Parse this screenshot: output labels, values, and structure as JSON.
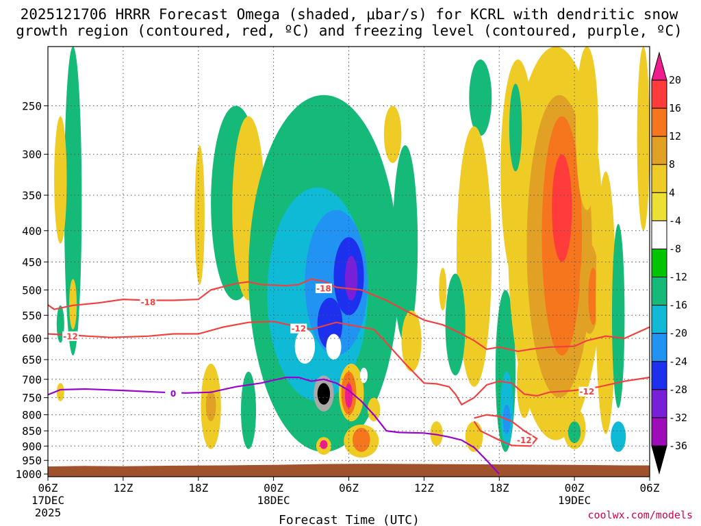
{
  "title": {
    "line1": "2025121706 HRRR Forecast Omega (shaded, μbar/s) for KCRL with dendritic snow",
    "line2": "growth region (contoured, red, ºC) and freezing level (contoured, purple, ºC)"
  },
  "credit": "coolwx.com/models",
  "colors": {
    "ascent_strong": "#ee1c8c",
    "ground": "#a0522d",
    "dgz_contour": "#f04040",
    "freezing_contour": "#9900cc",
    "grid": "#555555"
  },
  "chart_data": {
    "type": "heatmap",
    "title": "2025121706 HRRR Forecast Omega (shaded, μbar/s) for KCRL with dendritic snow growth region (contoured, red, ºC) and freezing level (contoured, purple, ºC)",
    "xlabel": "Forecast Time (UTC)",
    "ylabel": "",
    "x_range_hours": [
      0,
      48
    ],
    "y_range_hPa": [
      200,
      1010
    ],
    "y_scale": "log-pressure",
    "x_ticks": [
      {
        "hour": 0,
        "label": "06Z",
        "sub1": "17DEC",
        "sub2": "2025"
      },
      {
        "hour": 6,
        "label": "12Z",
        "sub1": "",
        "sub2": ""
      },
      {
        "hour": 12,
        "label": "18Z",
        "sub1": "",
        "sub2": ""
      },
      {
        "hour": 18,
        "label": "00Z",
        "sub1": "18DEC",
        "sub2": ""
      },
      {
        "hour": 24,
        "label": "06Z",
        "sub1": "",
        "sub2": ""
      },
      {
        "hour": 30,
        "label": "12Z",
        "sub1": "",
        "sub2": ""
      },
      {
        "hour": 36,
        "label": "18Z",
        "sub1": "",
        "sub2": ""
      },
      {
        "hour": 42,
        "label": "00Z",
        "sub1": "19DEC",
        "sub2": ""
      },
      {
        "hour": 48,
        "label": "06Z",
        "sub1": "",
        "sub2": ""
      }
    ],
    "y_ticks": [
      250,
      300,
      350,
      400,
      450,
      500,
      550,
      600,
      650,
      700,
      750,
      800,
      850,
      900,
      950,
      1000
    ],
    "grid": true,
    "colorbar": {
      "labels": [
        "20",
        "16",
        "12",
        "8",
        "4",
        "-4",
        "-8",
        "-12",
        "-16",
        "-20",
        "-24",
        "-28",
        "-32",
        "-36"
      ],
      "bins": [
        {
          "color": "#ff3b3b"
        },
        {
          "color": "#f5761c"
        },
        {
          "color": "#e1a125"
        },
        {
          "color": "#efcb26"
        },
        {
          "color": "#ece034"
        },
        {
          "color": "#ffffff"
        },
        {
          "color": "#00c400"
        },
        {
          "color": "#15ba78"
        },
        {
          "color": "#0fbad6"
        },
        {
          "color": "#2194f3"
        },
        {
          "color": "#1d30ee"
        },
        {
          "color": "#7a1fd8"
        },
        {
          "color": "#9d0cb8"
        },
        {
          "color": "#a9a9a9"
        }
      ],
      "top_arrow_color": "#ee1c8c",
      "bottom_arrow_color": "#000000"
    },
    "omega_regions": [
      {
        "value": -10,
        "hour": 2.0,
        "p": 410,
        "dh": 0.7,
        "dp_up": 220,
        "dp_dn": 230
      },
      {
        "value": -8,
        "hour": 1.0,
        "p": 570,
        "dh": 0.3,
        "dp_up": 40,
        "dp_dn": 40
      },
      {
        "value": 6,
        "hour": 1.0,
        "p": 350,
        "dh": 0.5,
        "dp_up": 90,
        "dp_dn": 70
      },
      {
        "value": 6,
        "hour": 2.0,
        "p": 540,
        "dh": 0.3,
        "dp_up": 60,
        "dp_dn": 40
      },
      {
        "value": 6,
        "hour": 1.0,
        "p": 740,
        "dh": 0.3,
        "dp_up": 30,
        "dp_dn": 20
      },
      {
        "value": 6,
        "hour": 12.1,
        "p": 400,
        "dh": 0.4,
        "dp_up": 110,
        "dp_dn": 90
      },
      {
        "value": 6,
        "hour": 13.0,
        "p": 780,
        "dh": 0.8,
        "dp_up": 120,
        "dp_dn": 130
      },
      {
        "value": 10,
        "hour": 13.0,
        "p": 780,
        "dh": 0.4,
        "dp_up": 50,
        "dp_dn": 40
      },
      {
        "value": -10,
        "hour": 15.0,
        "p": 400,
        "dh": 2.0,
        "dp_up": 150,
        "dp_dn": 120
      },
      {
        "value": 6,
        "hour": 16.0,
        "p": 380,
        "dh": 1.3,
        "dp_up": 120,
        "dp_dn": 140
      },
      {
        "value": 6,
        "hour": 18.4,
        "p": 620,
        "dh": 1.0,
        "dp_up": 80,
        "dp_dn": 40
      },
      {
        "value": -10,
        "hour": 16.0,
        "p": 820,
        "dh": 0.6,
        "dp_up": 140,
        "dp_dn": 90
      },
      {
        "value": -10,
        "hour": 22.0,
        "p": 620,
        "dh": 6.0,
        "dp_up": 380,
        "dp_dn": 300
      },
      {
        "value": -14,
        "hour": 21.5,
        "p": 560,
        "dh": 4.0,
        "dp_up": 220,
        "dp_dn": 200
      },
      {
        "value": -18,
        "hour": 23.0,
        "p": 520,
        "dh": 2.5,
        "dp_up": 150,
        "dp_dn": 120
      },
      {
        "value": -22,
        "hour": 24.0,
        "p": 490,
        "dh": 1.2,
        "dp_up": 80,
        "dp_dn": 60
      },
      {
        "value": -26,
        "hour": 24.2,
        "p": 480,
        "dh": 0.5,
        "dp_up": 40,
        "dp_dn": 40
      },
      {
        "value": -22,
        "hour": 22.5,
        "p": 575,
        "dh": 1.0,
        "dp_up": 60,
        "dp_dn": 50
      },
      {
        "value": 0,
        "hour": 20.5,
        "p": 620,
        "dh": 0.8,
        "dp_up": 40,
        "dp_dn": 40
      },
      {
        "value": 0,
        "hour": 22.8,
        "p": 620,
        "dh": 0.6,
        "dp_up": 30,
        "dp_dn": 30
      },
      {
        "value": 6,
        "hour": 24.2,
        "p": 760,
        "dh": 1.0,
        "dp_up": 100,
        "dp_dn": 60
      },
      {
        "value": 14,
        "hour": 24.0,
        "p": 750,
        "dh": 0.6,
        "dp_up": 70,
        "dp_dn": 50
      },
      {
        "value": 22,
        "hour": 24.0,
        "p": 750,
        "dh": 0.3,
        "dp_up": 40,
        "dp_dn": 30
      },
      {
        "value": 0,
        "hour": 25.2,
        "p": 690,
        "dh": 0.3,
        "dp_up": 20,
        "dp_dn": 20
      },
      {
        "value": 6,
        "hour": 25.0,
        "p": 880,
        "dh": 1.4,
        "dp_up": 50,
        "dp_dn": 60
      },
      {
        "value": 14,
        "hour": 25.0,
        "p": 880,
        "dh": 0.7,
        "dp_up": 40,
        "dp_dn": 40
      },
      {
        "value": 6,
        "hour": 22.0,
        "p": 900,
        "dh": 0.6,
        "dp_up": 30,
        "dp_dn": 30
      },
      {
        "value": 22,
        "hour": 22.0,
        "p": 895,
        "dh": 0.3,
        "dp_up": 15,
        "dp_dn": 15
      },
      {
        "value": -32,
        "hour": 22.0,
        "p": 740,
        "dh": 0.8,
        "dp_up": 50,
        "dp_dn": 50
      },
      {
        "value": -40,
        "hour": 22.0,
        "p": 740,
        "dh": 0.5,
        "dp_up": 30,
        "dp_dn": 30
      },
      {
        "value": 6,
        "hour": 26.0,
        "p": 780,
        "dh": 0.5,
        "dp_up": 30,
        "dp_dn": 40
      },
      {
        "value": 6,
        "hour": 27.5,
        "p": 280,
        "dh": 0.7,
        "dp_up": 30,
        "dp_dn": 30
      },
      {
        "value": -10,
        "hour": 28.5,
        "p": 490,
        "dh": 1.0,
        "dp_up": 200,
        "dp_dn": 120
      },
      {
        "value": 6,
        "hour": 29.0,
        "p": 630,
        "dh": 0.8,
        "dp_up": 90,
        "dp_dn": 50
      },
      {
        "value": 6,
        "hour": 31.0,
        "p": 850,
        "dh": 0.5,
        "dp_up": 30,
        "dp_dn": 50
      },
      {
        "value": -10,
        "hour": 34.5,
        "p": 250,
        "dh": 0.9,
        "dp_up": 40,
        "dp_dn": 30
      },
      {
        "value": 6,
        "hour": 34.0,
        "p": 520,
        "dh": 1.4,
        "dp_up": 250,
        "dp_dn": 200
      },
      {
        "value": -10,
        "hour": 32.5,
        "p": 560,
        "dh": 0.8,
        "dp_up": 90,
        "dp_dn": 130
      },
      {
        "value": 6,
        "hour": 31.5,
        "p": 500,
        "dh": 0.3,
        "dp_up": 40,
        "dp_dn": 40
      },
      {
        "value": 6,
        "hour": 34.0,
        "p": 880,
        "dh": 0.7,
        "dp_up": 60,
        "dp_dn": 40
      },
      {
        "value": -10,
        "hour": 36.5,
        "p": 760,
        "dh": 0.8,
        "dp_up": 260,
        "dp_dn": 160
      },
      {
        "value": -14,
        "hour": 36.6,
        "p": 800,
        "dh": 0.5,
        "dp_up": 120,
        "dp_dn": 100
      },
      {
        "value": -18,
        "hour": 36.6,
        "p": 820,
        "dh": 0.3,
        "dp_up": 50,
        "dp_dn": 40
      },
      {
        "value": 6,
        "hour": 37.5,
        "p": 360,
        "dh": 1.4,
        "dp_up": 150,
        "dp_dn": 130
      },
      {
        "value": 6,
        "hour": 38.0,
        "p": 720,
        "dh": 0.6,
        "dp_up": 100,
        "dp_dn": 90
      },
      {
        "value": 6,
        "hour": 40.5,
        "p": 500,
        "dh": 3.8,
        "dp_up": 300,
        "dp_dn": 380
      },
      {
        "value": 10,
        "hour": 40.8,
        "p": 450,
        "dh": 2.6,
        "dp_up": 210,
        "dp_dn": 300
      },
      {
        "value": 14,
        "hour": 41.0,
        "p": 420,
        "dh": 1.6,
        "dp_up": 160,
        "dp_dn": 220
      },
      {
        "value": 18,
        "hour": 41.0,
        "p": 380,
        "dh": 0.8,
        "dp_up": 80,
        "dp_dn": 70
      },
      {
        "value": 6,
        "hour": 42.0,
        "p": 850,
        "dh": 0.9,
        "dp_up": 70,
        "dp_dn": 60
      },
      {
        "value": -10,
        "hour": 42.0,
        "p": 860,
        "dh": 0.5,
        "dp_up": 40,
        "dp_dn": 30
      },
      {
        "value": 6,
        "hour": 43.0,
        "p": 300,
        "dh": 0.9,
        "dp_up": 100,
        "dp_dn": 70
      },
      {
        "value": 10,
        "hour": 43.2,
        "p": 500,
        "dh": 0.8,
        "dp_up": 80,
        "dp_dn": 90
      },
      {
        "value": 14,
        "hour": 43.5,
        "p": 520,
        "dh": 0.4,
        "dp_up": 60,
        "dp_dn": 50
      },
      {
        "value": 6,
        "hour": 44.5,
        "p": 600,
        "dh": 0.8,
        "dp_up": 280,
        "dp_dn": 260
      },
      {
        "value": -10,
        "hour": 45.5,
        "p": 570,
        "dh": 0.5,
        "dp_up": 180,
        "dp_dn": 210
      },
      {
        "value": -14,
        "hour": 45.5,
        "p": 860,
        "dh": 0.6,
        "dp_up": 40,
        "dp_dn": 60
      },
      {
        "value": 6,
        "hour": 47.5,
        "p": 300,
        "dh": 0.5,
        "dp_up": 100,
        "dp_dn": 100
      },
      {
        "value": -10,
        "hour": 37.3,
        "p": 280,
        "dh": 0.5,
        "dp_up": 50,
        "dp_dn": 40
      }
    ],
    "contours": {
      "minus18": {
        "label": "-18",
        "label_hour": 8.0,
        "label_p": 523,
        "label2": "-18",
        "label2_hour": 22.0,
        "label2_p": 497,
        "points": [
          [
            0,
            529
          ],
          [
            0.5,
            538
          ],
          [
            2,
            530
          ],
          [
            4,
            525
          ],
          [
            6,
            518
          ],
          [
            8,
            520
          ],
          [
            10,
            520
          ],
          [
            12,
            518
          ],
          [
            13,
            500
          ],
          [
            15,
            488
          ],
          [
            16,
            485
          ],
          [
            17,
            490
          ],
          [
            19,
            492
          ],
          [
            20,
            490
          ],
          [
            21,
            480
          ],
          [
            22,
            484
          ],
          [
            23,
            495
          ],
          [
            25,
            500
          ],
          [
            27,
            520
          ],
          [
            28.5,
            540
          ],
          [
            30,
            560
          ],
          [
            31.5,
            570
          ],
          [
            33,
            590
          ],
          [
            34,
            605
          ],
          [
            35,
            625
          ],
          [
            36,
            620
          ],
          [
            37.5,
            630
          ],
          [
            38.5,
            625
          ],
          [
            40,
            620
          ],
          [
            42,
            618
          ],
          [
            43,
            605
          ],
          [
            44.5,
            595
          ],
          [
            46,
            600
          ],
          [
            48,
            575
          ]
        ]
      },
      "minus12": {
        "label": "-12",
        "label_hour": 1.8,
        "label_p": 595,
        "label2": "-12",
        "label2_hour": 43.0,
        "label2_p": 733,
        "label3": "-12",
        "label3_hour": 20.0,
        "label3_p": 578,
        "label4": "-12",
        "label4_hour": 38.0,
        "label4_p": 880,
        "points": [
          [
            0,
            590
          ],
          [
            2,
            593
          ],
          [
            5,
            598
          ],
          [
            8,
            595
          ],
          [
            10,
            590
          ],
          [
            12,
            590
          ],
          [
            14,
            575
          ],
          [
            16,
            565
          ],
          [
            18,
            563
          ],
          [
            20,
            575
          ],
          [
            21,
            580
          ],
          [
            23,
            565
          ],
          [
            24,
            570
          ],
          [
            25,
            575
          ],
          [
            26,
            580
          ],
          [
            27,
            610
          ],
          [
            28.5,
            660
          ],
          [
            30,
            710
          ],
          [
            31,
            712
          ],
          [
            32,
            720
          ],
          [
            32.5,
            740
          ],
          [
            33,
            770
          ],
          [
            34,
            750
          ],
          [
            35,
            715
          ],
          [
            36,
            705
          ],
          [
            37,
            710
          ],
          [
            38,
            740
          ],
          [
            39,
            745
          ],
          [
            40,
            735
          ],
          [
            42,
            730
          ],
          [
            44,
            720
          ],
          [
            46,
            705
          ],
          [
            48,
            695
          ]
        ],
        "loop": [
          [
            34,
            810
          ],
          [
            35,
            800
          ],
          [
            36,
            805
          ],
          [
            37,
            820
          ],
          [
            38,
            850
          ],
          [
            39,
            875
          ],
          [
            38.5,
            900
          ],
          [
            37,
            898
          ],
          [
            36,
            880
          ],
          [
            34.5,
            850
          ],
          [
            34,
            820
          ]
        ]
      },
      "zero": {
        "label": "0",
        "label_hour": 10.0,
        "label_p": 738,
        "points": [
          [
            0,
            742
          ],
          [
            1,
            728
          ],
          [
            3,
            726
          ],
          [
            6,
            730
          ],
          [
            9,
            735
          ],
          [
            11,
            737
          ],
          [
            13,
            735
          ],
          [
            15,
            720
          ],
          [
            17,
            710
          ],
          [
            19,
            695
          ],
          [
            20,
            695
          ],
          [
            21,
            705
          ],
          [
            22,
            700
          ],
          [
            23,
            710
          ],
          [
            24,
            730
          ],
          [
            25,
            760
          ],
          [
            26,
            800
          ],
          [
            27,
            850
          ],
          [
            28,
            855
          ],
          [
            30,
            857
          ],
          [
            31,
            862
          ],
          [
            32,
            870
          ],
          [
            33,
            880
          ],
          [
            34,
            905
          ],
          [
            35,
            950
          ],
          [
            36,
            1000
          ]
        ]
      },
      "ground_top_hPa": 970
    }
  }
}
